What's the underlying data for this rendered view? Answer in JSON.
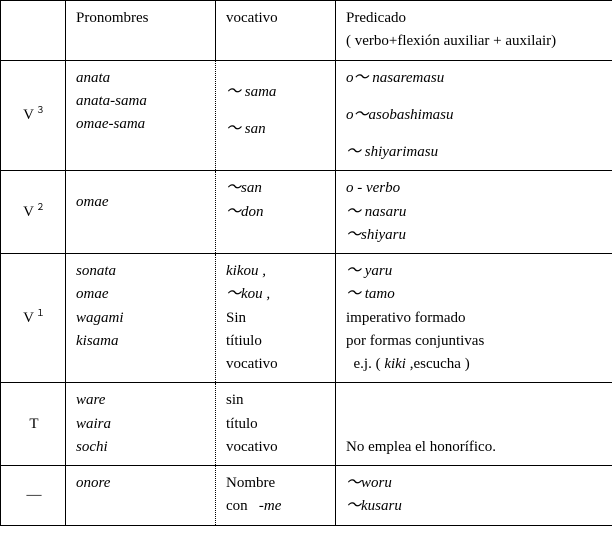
{
  "table": {
    "header": {
      "level": "",
      "pronombres": "Pronombres",
      "vocativo": "vocativo",
      "predicado_l1": "Predicado",
      "predicado_l2": "( verbo+flexión auxiliar + auxilair)"
    },
    "rows": [
      {
        "level_main": "V",
        "level_sup": "３",
        "pron": [
          "anata",
          "anata-sama",
          "omae-sama"
        ],
        "voc": [
          "",
          "～ sama",
          "",
          "～ san"
        ],
        "pred": [
          "o～  nasaremasu",
          "",
          "o～asobashimasu",
          "",
          "～ shiyarimasu"
        ]
      },
      {
        "level_main": "V",
        "level_sup": "２",
        "pron": [
          "",
          "  omae"
        ],
        "voc": [
          "～san",
          "～don"
        ],
        "pred": [
          " o - verbo",
          " ～  nasaru",
          " ～shiyaru"
        ]
      },
      {
        "level_main": "V",
        "level_sup": "１",
        "pron": [
          "sonata",
          "omae",
          "wagami",
          "kisama"
        ],
        "voc": [
          "    kikou ,",
          "   ～kou ,",
          "  Sin",
          "  títiulo",
          "  vocativo"
        ],
        "pred": [
          "  ～ yaru",
          "  ～ tamo",
          "  imperativo formado",
          "  por formas conjuntivas",
          "  e.j. ( kiki ,escucha )"
        ]
      },
      {
        "level_main": "T",
        "level_sup": "",
        "pron": [
          "ware",
          "waira",
          "sochi"
        ],
        "voc": [
          "sin",
          "título",
          "vocativo"
        ],
        "pred": [
          "",
          "",
          "No emplea el honorífico."
        ]
      },
      {
        "level_main": "―",
        "level_sup": "",
        "pron": [
          "onore"
        ],
        "voc": [
          "Nombre",
          "con    -me"
        ],
        "pred": [
          " ～woru",
          "～kusaru"
        ]
      }
    ],
    "styling": {
      "italic_rows_pron": [
        0,
        1,
        2,
        3,
        4
      ],
      "voc_italic": {
        "0": [
          1,
          3
        ],
        "1": [
          0,
          1
        ],
        "2": [
          0,
          1
        ]
      },
      "pred_italic": {
        "0": [
          0,
          2,
          4
        ],
        "1": [
          0,
          1,
          2
        ],
        "2": [
          0,
          1
        ],
        "4": [
          0,
          1
        ]
      },
      "voc_me_italic_row": 4
    },
    "colors": {
      "border": "#000000",
      "background": "#ffffff",
      "text": "#000000"
    },
    "font": {
      "family": "Times New Roman",
      "size_pt": 11
    }
  }
}
